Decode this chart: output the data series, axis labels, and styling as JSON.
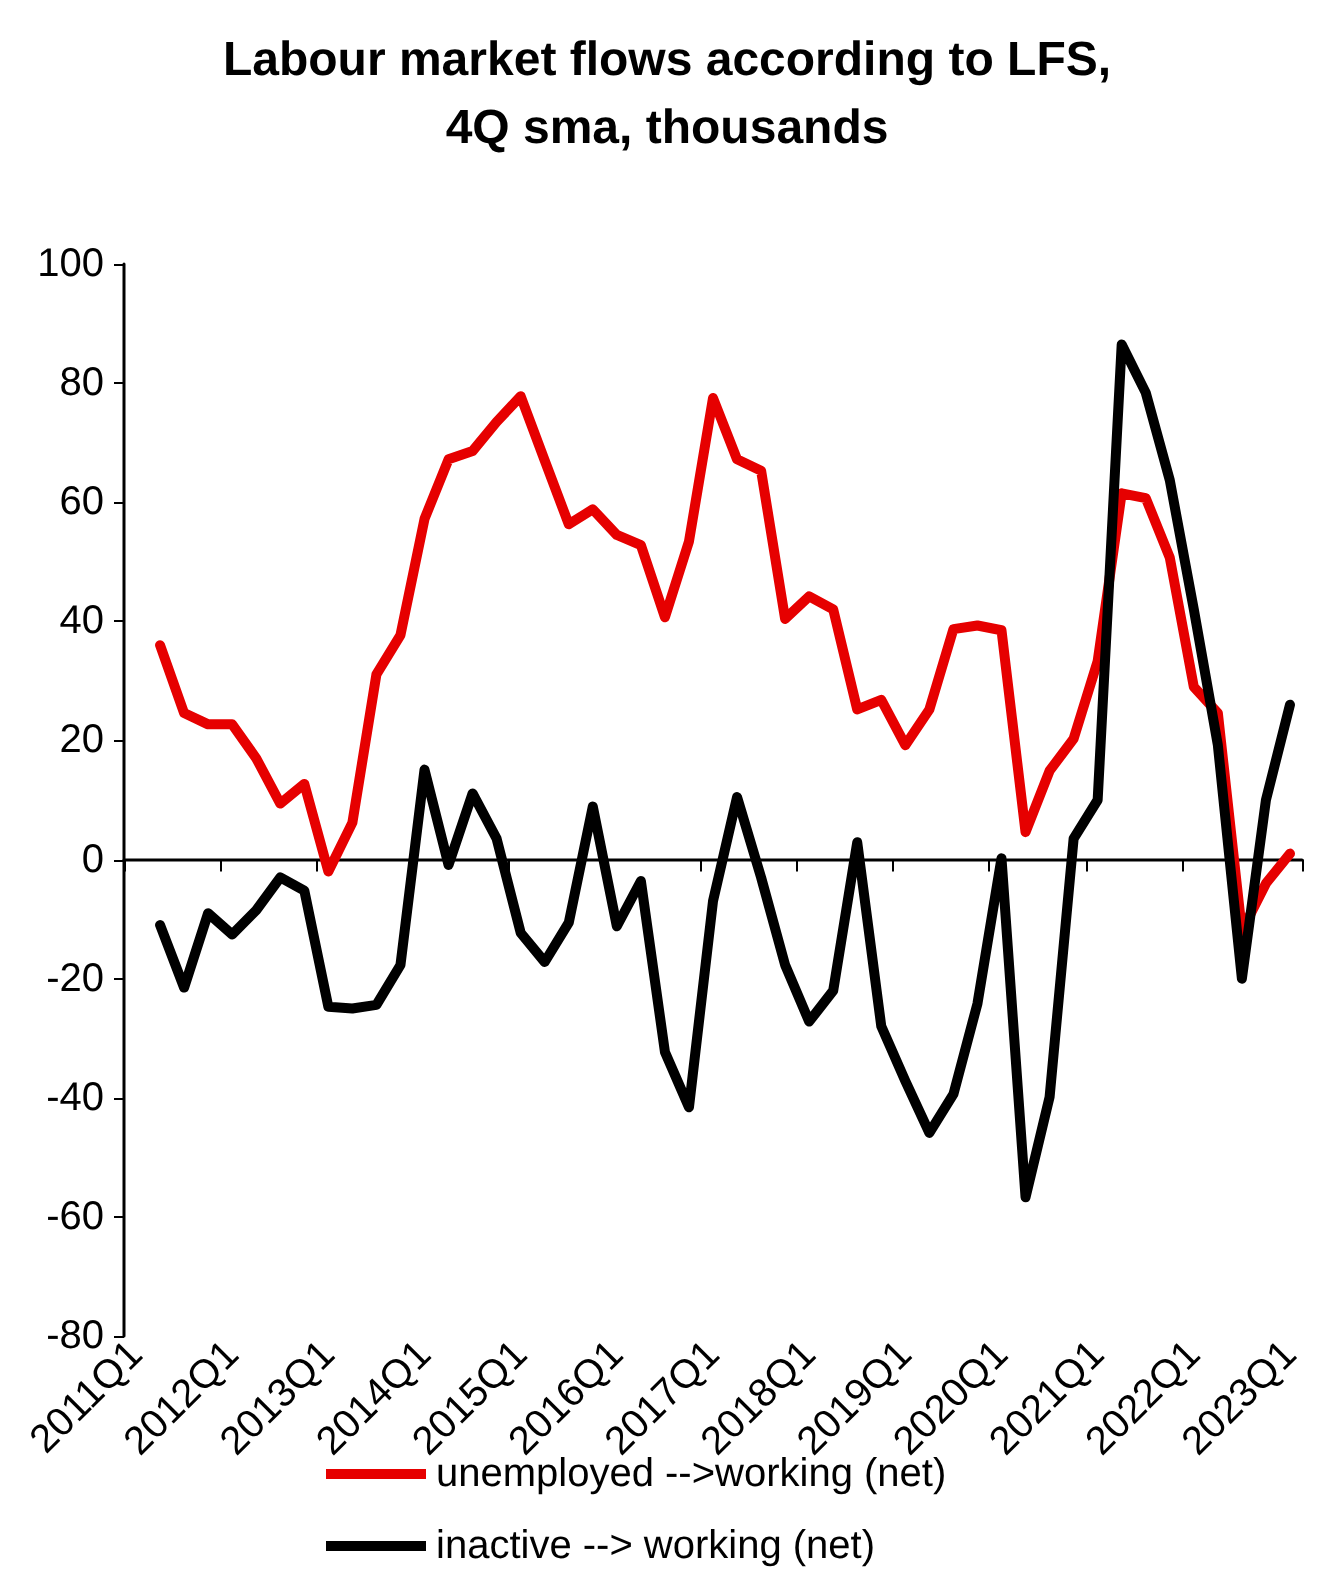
{
  "chart_data": {
    "type": "line",
    "title": "Labour market flows according to LFS,\n4Q sma, thousands",
    "categories": [
      "2011Q1",
      null,
      null,
      null,
      "2012Q1",
      null,
      null,
      null,
      "2013Q1",
      null,
      null,
      null,
      "2014Q1",
      null,
      null,
      null,
      "2015Q1",
      null,
      null,
      null,
      "2016Q1",
      null,
      null,
      null,
      "2017Q1",
      null,
      null,
      null,
      "2018Q1",
      null,
      null,
      null,
      "2019Q1",
      null,
      null,
      null,
      "2020Q1",
      null,
      null,
      null,
      "2021Q1",
      null,
      null,
      null,
      "2022Q1",
      null,
      null,
      null,
      "2023Q1"
    ],
    "series": [
      {
        "name": "unemployed -->working (net)",
        "color": "#e60000",
        "values": [
          null,
          36,
          24.6,
          22.7,
          22.7,
          17,
          9.4,
          12.7,
          -2,
          6.2,
          31.1,
          37.7,
          57.2,
          67.2,
          68.6,
          73.5,
          77.8,
          67,
          56.3,
          58.8,
          54.5,
          52.8,
          40.7,
          53.4,
          77.5,
          67.2,
          65.3,
          40.4,
          44.2,
          42,
          25.2,
          26.8,
          19.2,
          25.2,
          38.7,
          39.3,
          38.5,
          4.6,
          14.9,
          20.3,
          33.3,
          61.5,
          60.7,
          50.7,
          29,
          24.6,
          -12,
          -4,
          1
        ]
      },
      {
        "name": "inactive --> working (net)",
        "color": "#000000",
        "values": [
          null,
          -11,
          -21.5,
          -9,
          -12.6,
          -8.5,
          -3,
          -5.2,
          -24.7,
          -25,
          -24.4,
          -17.7,
          15.1,
          -0.9,
          11.1,
          3.5,
          -12.3,
          -17.2,
          -10.6,
          8.9,
          -11.2,
          -3.6,
          -32.3,
          -41.6,
          -7,
          10.5,
          -3,
          -17.7,
          -27.2,
          -22,
          2.9,
          -28,
          -37.2,
          -45.9,
          -39.4,
          -24.2,
          0.2,
          -56.7,
          -39.9,
          3.5,
          10,
          86.5,
          78.4,
          63.7,
          42,
          19.2,
          -20,
          10,
          26
        ]
      }
    ],
    "ylim": [
      -80,
      100
    ],
    "yticks": [
      -80,
      -60,
      -40,
      -20,
      0,
      20,
      40,
      60,
      80,
      100
    ],
    "legend": "bottom",
    "marker": "none",
    "line_style": "solid"
  }
}
